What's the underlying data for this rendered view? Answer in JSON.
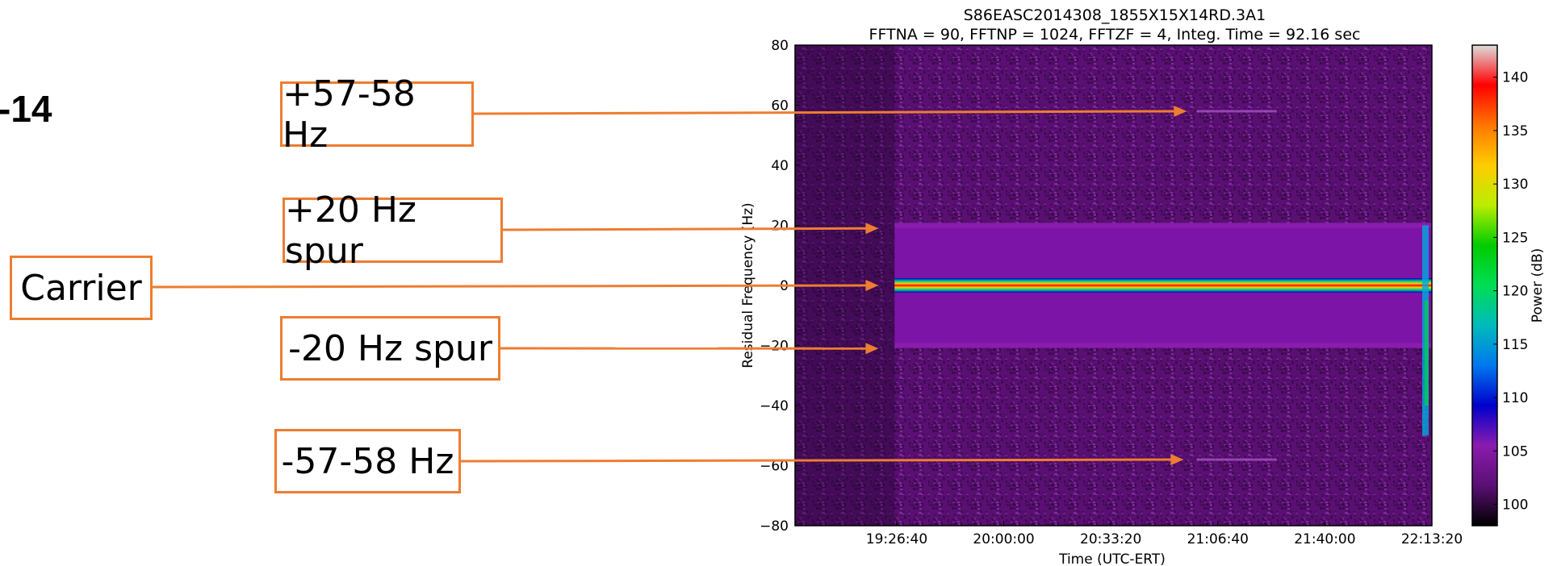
{
  "slide": {
    "title_fragment": "-14"
  },
  "annotations": [
    {
      "label": "+57-58 Hz",
      "target_freq_hz": 58,
      "target_time": "20:57:00"
    },
    {
      "label": "+20 Hz spur",
      "target_freq_hz": 19,
      "target_time": "19:21:00"
    },
    {
      "label": "Carrier",
      "target_freq_hz": 0,
      "target_time": "19:21:00"
    },
    {
      "label": "-20 Hz spur",
      "target_freq_hz": -21,
      "target_time": "19:21:00"
    },
    {
      "label": "-57-58 Hz",
      "target_freq_hz": -58,
      "target_time": "20:56:00"
    }
  ],
  "annotation_color": "#ed7d31",
  "chart_data": {
    "type": "heatmap",
    "title": "S86EASC2014308_1855X15X14RD.3A1",
    "subtitle": "FFTNA = 90, FFTNP = 1024, FFTZF = 4, Integ. Time = 92.16 sec",
    "xlabel": "Time (UTC-ERT)",
    "ylabel": "Residual Frequency (Hz)",
    "colorbar_label": "Power (dB)",
    "x_ticks": [
      "19:26:40",
      "20:00:00",
      "20:33:20",
      "21:06:40",
      "21:40:00",
      "22:13:20"
    ],
    "y_ticks": [
      80,
      60,
      40,
      20,
      0,
      -20,
      -40,
      -60,
      -80
    ],
    "ylim": [
      -80,
      80
    ],
    "xlim": [
      "18:55:00",
      "22:13:20"
    ],
    "colorbar_ticks": [
      140,
      135,
      130,
      125,
      120,
      115,
      110,
      105,
      100
    ],
    "colorbar_range": [
      98,
      143
    ],
    "colormap": [
      "#000000",
      "#5a0f73",
      "#8a1cae",
      "#0000cc",
      "#0077ee",
      "#00bbbb",
      "#00dd55",
      "#00cc00",
      "#bbee00",
      "#ffcc00",
      "#ff7700",
      "#ff0000",
      "#dddddd"
    ],
    "background_db": 100,
    "features": [
      {
        "kind": "carrier",
        "freq_hz": 0,
        "power_db": 140,
        "start": "19:26:00",
        "end": "22:13:20"
      },
      {
        "kind": "spur",
        "freq_hz": 20,
        "power_db": 106,
        "start": "19:26:00",
        "end": "22:13:20"
      },
      {
        "kind": "spur",
        "freq_hz": -20,
        "power_db": 106,
        "start": "19:26:00",
        "end": "22:13:20"
      },
      {
        "kind": "faint line",
        "freq_hz": 58,
        "power_db": 101,
        "start": "21:00:00",
        "end": "21:25:00"
      },
      {
        "kind": "faint line",
        "freq_hz": -58,
        "power_db": 101,
        "start": "21:00:00",
        "end": "21:25:00"
      }
    ],
    "grid": false
  }
}
